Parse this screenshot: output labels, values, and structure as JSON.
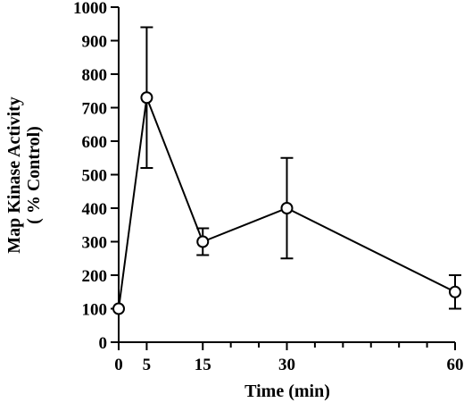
{
  "chart_data": {
    "type": "line",
    "title": "",
    "xlabel": "Time (min)",
    "ylabel_lines": [
      "Map Kinase Activity",
      "( % Control)"
    ],
    "x": [
      0,
      5,
      15,
      30,
      60
    ],
    "series": [
      {
        "values": [
          100,
          730,
          300,
          400,
          150
        ],
        "error": [
          0,
          210,
          40,
          150,
          50
        ]
      }
    ],
    "xlim": [
      0,
      60
    ],
    "ylim": [
      0,
      1000
    ],
    "xticks": [
      0,
      5,
      15,
      30,
      60
    ],
    "xticks_unlabeled": [
      20,
      25,
      35,
      40,
      45,
      50,
      55
    ],
    "yticks": [
      0,
      100,
      200,
      300,
      400,
      500,
      600,
      700,
      800,
      900,
      1000
    ],
    "grid": false,
    "marker": "open-circle",
    "line_color": "#000000"
  }
}
